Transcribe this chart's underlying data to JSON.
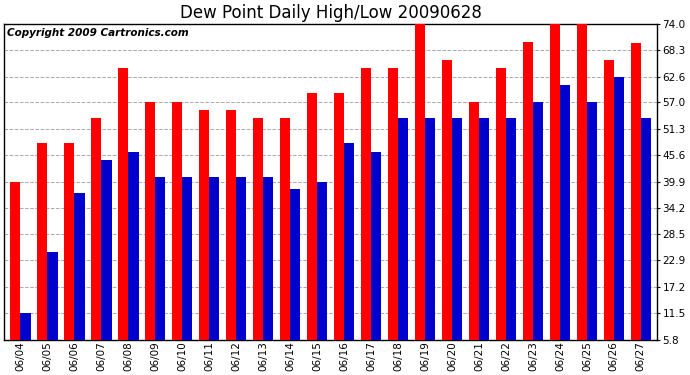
{
  "title": "Dew Point Daily High/Low 20090628",
  "copyright": "Copyright 2009 Cartronics.com",
  "dates": [
    "06/04",
    "06/05",
    "06/06",
    "06/07",
    "06/08",
    "06/09",
    "06/10",
    "06/11",
    "06/12",
    "06/13",
    "06/14",
    "06/15",
    "06/16",
    "06/17",
    "06/18",
    "06/19",
    "06/20",
    "06/21",
    "06/22",
    "06/23",
    "06/24",
    "06/25",
    "06/26",
    "06/27"
  ],
  "highs": [
    39.9,
    48.2,
    48.2,
    53.6,
    64.4,
    57.2,
    57.2,
    55.4,
    55.4,
    53.6,
    53.6,
    59.0,
    59.0,
    64.4,
    64.4,
    74.0,
    66.2,
    57.2,
    64.4,
    70.0,
    74.0,
    74.0,
    66.2,
    69.8
  ],
  "lows": [
    11.5,
    24.8,
    37.4,
    44.6,
    46.4,
    41.0,
    41.0,
    41.0,
    41.0,
    41.0,
    38.3,
    39.9,
    48.2,
    46.4,
    53.6,
    53.6,
    53.6,
    53.6,
    53.6,
    57.2,
    60.8,
    57.2,
    62.6,
    53.6
  ],
  "high_color": "#ff0000",
  "low_color": "#0000cc",
  "bg_color": "#ffffff",
  "grid_color": "#aaaaaa",
  "ymin": 5.8,
  "ymax": 74.0,
  "yticks": [
    5.8,
    11.5,
    17.2,
    22.9,
    28.5,
    34.2,
    39.9,
    45.6,
    51.3,
    57.0,
    62.6,
    68.3,
    74.0
  ],
  "bar_width": 0.38,
  "title_fontsize": 12,
  "tick_fontsize": 7.5,
  "copyright_fontsize": 7.5
}
